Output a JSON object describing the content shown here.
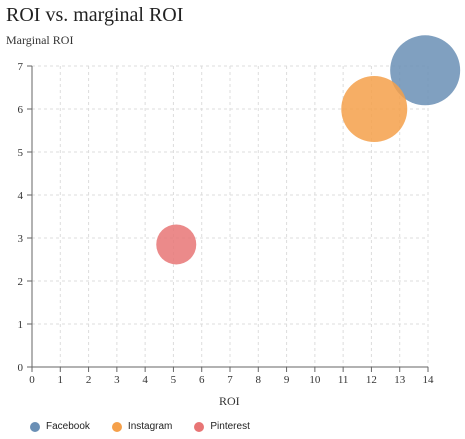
{
  "chart_data": {
    "type": "scatter",
    "title": "ROI vs. marginal ROI",
    "xlabel": "ROI",
    "ylabel": "Marginal ROI",
    "xlim": [
      0,
      14
    ],
    "ylim": [
      0,
      7
    ],
    "x_ticks": [
      "0",
      "1",
      "2",
      "3",
      "4",
      "5",
      "6",
      "7",
      "8",
      "9",
      "10",
      "11",
      "12",
      "13",
      "14"
    ],
    "y_ticks": [
      "0",
      "1",
      "2",
      "3",
      "4",
      "5",
      "6",
      "7"
    ],
    "grid": true,
    "legend_position": "bottom-left",
    "series": [
      {
        "name": "Facebook",
        "color": "#6a8fb5",
        "x": 13.9,
        "y": 6.9,
        "size": 3.5
      },
      {
        "name": "Instagram",
        "color": "#f5a04a",
        "x": 12.1,
        "y": 6.0,
        "size": 3.3
      },
      {
        "name": "Pinterest",
        "color": "#e87575",
        "x": 5.1,
        "y": 2.85,
        "size": 2.0
      }
    ]
  }
}
